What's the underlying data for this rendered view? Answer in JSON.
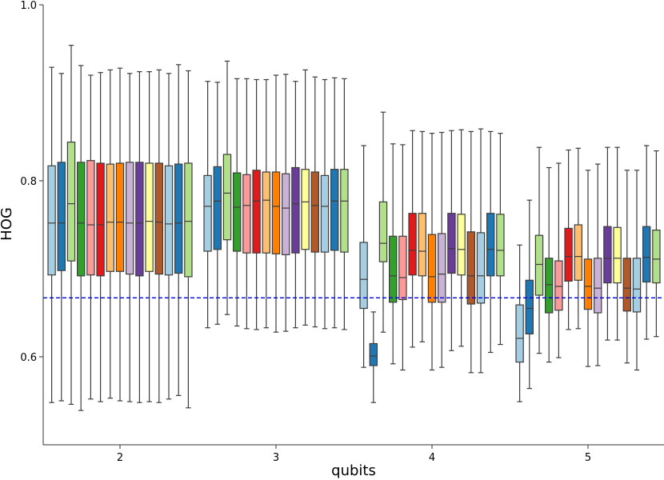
{
  "chart_data": {
    "type": "box",
    "xlabel": "qubits",
    "ylabel": "HOG",
    "ylim": [
      0.5,
      1.0
    ],
    "yticks": [
      "0.6",
      "0.8",
      "1.0"
    ],
    "categories": [
      "2",
      "3",
      "4",
      "5"
    ],
    "reference_line": {
      "y": 0.667,
      "style": "dashed",
      "color": "#0000cc"
    },
    "palette": [
      "#a6cee3",
      "#1f78b4",
      "#b2df8a",
      "#33a02c",
      "#fb9a99",
      "#e31a1c",
      "#fdbf6f",
      "#ff7f00",
      "#cab2d6",
      "#6a3d9a",
      "#ffff99",
      "#b15928"
    ],
    "groups": [
      {
        "category": "2",
        "boxes": [
          {
            "whislo": 0.548,
            "q1": 0.693,
            "med": 0.752,
            "q3": 0.817,
            "whishi": 0.929,
            "color": "#a6cee3"
          },
          {
            "whislo": 0.55,
            "q1": 0.698,
            "med": 0.752,
            "q3": 0.821,
            "whishi": 0.922,
            "color": "#1f78b4"
          },
          {
            "whislo": 0.546,
            "q1": 0.709,
            "med": 0.774,
            "q3": 0.844,
            "whishi": 0.954,
            "color": "#b2df8a"
          },
          {
            "whislo": 0.539,
            "q1": 0.692,
            "med": 0.752,
            "q3": 0.821,
            "whishi": 0.931,
            "color": "#33a02c"
          },
          {
            "whislo": 0.552,
            "q1": 0.693,
            "med": 0.75,
            "q3": 0.823,
            "whishi": 0.92,
            "color": "#fb9a99"
          },
          {
            "whislo": 0.549,
            "q1": 0.692,
            "med": 0.75,
            "q3": 0.82,
            "whishi": 0.923,
            "color": "#e31a1c"
          },
          {
            "whislo": 0.553,
            "q1": 0.697,
            "med": 0.753,
            "q3": 0.819,
            "whishi": 0.926,
            "color": "#fdbf6f"
          },
          {
            "whislo": 0.55,
            "q1": 0.697,
            "med": 0.753,
            "q3": 0.82,
            "whishi": 0.928,
            "color": "#ff7f00"
          },
          {
            "whislo": 0.549,
            "q1": 0.694,
            "med": 0.752,
            "q3": 0.821,
            "whishi": 0.922,
            "color": "#cab2d6"
          },
          {
            "whislo": 0.548,
            "q1": 0.692,
            "med": 0.752,
            "q3": 0.821,
            "whishi": 0.924,
            "color": "#6a3d9a"
          },
          {
            "whislo": 0.549,
            "q1": 0.697,
            "med": 0.754,
            "q3": 0.82,
            "whishi": 0.924,
            "color": "#ffff99"
          },
          {
            "whislo": 0.548,
            "q1": 0.694,
            "med": 0.753,
            "q3": 0.82,
            "whishi": 0.926,
            "color": "#b15928"
          },
          {
            "whislo": 0.552,
            "q1": 0.693,
            "med": 0.751,
            "q3": 0.817,
            "whishi": 0.922,
            "color": "#a6cee3"
          },
          {
            "whislo": 0.556,
            "q1": 0.695,
            "med": 0.752,
            "q3": 0.819,
            "whishi": 0.932,
            "color": "#1f78b4"
          },
          {
            "whislo": 0.542,
            "q1": 0.691,
            "med": 0.754,
            "q3": 0.82,
            "whishi": 0.925,
            "color": "#b2df8a"
          }
        ]
      },
      {
        "category": "3",
        "boxes": [
          {
            "whislo": 0.633,
            "q1": 0.72,
            "med": 0.771,
            "q3": 0.806,
            "whishi": 0.913,
            "color": "#a6cee3"
          },
          {
            "whislo": 0.637,
            "q1": 0.722,
            "med": 0.777,
            "q3": 0.816,
            "whishi": 0.912,
            "color": "#1f78b4"
          },
          {
            "whislo": 0.648,
            "q1": 0.733,
            "med": 0.786,
            "q3": 0.83,
            "whishi": 0.936,
            "color": "#b2df8a"
          },
          {
            "whislo": 0.635,
            "q1": 0.72,
            "med": 0.77,
            "q3": 0.809,
            "whishi": 0.916,
            "color": "#33a02c"
          },
          {
            "whislo": 0.632,
            "q1": 0.718,
            "med": 0.772,
            "q3": 0.807,
            "whishi": 0.916,
            "color": "#fb9a99"
          },
          {
            "whislo": 0.631,
            "q1": 0.718,
            "med": 0.777,
            "q3": 0.812,
            "whishi": 0.915,
            "color": "#e31a1c"
          },
          {
            "whislo": 0.633,
            "q1": 0.718,
            "med": 0.778,
            "q3": 0.81,
            "whishi": 0.915,
            "color": "#fdbf6f"
          },
          {
            "whislo": 0.628,
            "q1": 0.717,
            "med": 0.771,
            "q3": 0.81,
            "whishi": 0.92,
            "color": "#ff7f00"
          },
          {
            "whislo": 0.629,
            "q1": 0.716,
            "med": 0.769,
            "q3": 0.808,
            "whishi": 0.921,
            "color": "#cab2d6"
          },
          {
            "whislo": 0.633,
            "q1": 0.718,
            "med": 0.774,
            "q3": 0.815,
            "whishi": 0.913,
            "color": "#6a3d9a"
          },
          {
            "whislo": 0.636,
            "q1": 0.722,
            "med": 0.776,
            "q3": 0.813,
            "whishi": 0.926,
            "color": "#ffff99"
          },
          {
            "whislo": 0.634,
            "q1": 0.719,
            "med": 0.772,
            "q3": 0.81,
            "whishi": 0.918,
            "color": "#b15928"
          },
          {
            "whislo": 0.632,
            "q1": 0.719,
            "med": 0.771,
            "q3": 0.806,
            "whishi": 0.915,
            "color": "#a6cee3"
          },
          {
            "whislo": 0.633,
            "q1": 0.721,
            "med": 0.777,
            "q3": 0.813,
            "whishi": 0.917,
            "color": "#1f78b4"
          },
          {
            "whislo": 0.631,
            "q1": 0.719,
            "med": 0.777,
            "q3": 0.813,
            "whishi": 0.916,
            "color": "#b2df8a"
          }
        ]
      },
      {
        "category": "4",
        "boxes": [
          {
            "whislo": 0.588,
            "q1": 0.655,
            "med": 0.688,
            "q3": 0.73,
            "whishi": 0.84,
            "color": "#a6cee3"
          },
          {
            "whislo": 0.548,
            "q1": 0.59,
            "med": 0.601,
            "q3": 0.615,
            "whishi": 0.651,
            "color": "#1f78b4"
          },
          {
            "whislo": 0.628,
            "q1": 0.708,
            "med": 0.729,
            "q3": 0.776,
            "whishi": 0.878,
            "color": "#b2df8a"
          },
          {
            "whislo": 0.592,
            "q1": 0.662,
            "med": 0.692,
            "q3": 0.737,
            "whishi": 0.842,
            "color": "#33a02c"
          },
          {
            "whislo": 0.585,
            "q1": 0.665,
            "med": 0.69,
            "q3": 0.737,
            "whishi": 0.841,
            "color": "#fb9a99"
          },
          {
            "whislo": 0.611,
            "q1": 0.693,
            "med": 0.721,
            "q3": 0.763,
            "whishi": 0.857,
            "color": "#e31a1c"
          },
          {
            "whislo": 0.617,
            "q1": 0.692,
            "med": 0.72,
            "q3": 0.763,
            "whishi": 0.856,
            "color": "#fdbf6f"
          },
          {
            "whislo": 0.585,
            "q1": 0.662,
            "med": 0.691,
            "q3": 0.739,
            "whishi": 0.854,
            "color": "#ff7f00"
          },
          {
            "whislo": 0.588,
            "q1": 0.662,
            "med": 0.694,
            "q3": 0.74,
            "whishi": 0.855,
            "color": "#cab2d6"
          },
          {
            "whislo": 0.607,
            "q1": 0.695,
            "med": 0.723,
            "q3": 0.763,
            "whishi": 0.857,
            "color": "#6a3d9a"
          },
          {
            "whislo": 0.612,
            "q1": 0.693,
            "med": 0.722,
            "q3": 0.762,
            "whishi": 0.858,
            "color": "#ffff99"
          },
          {
            "whislo": 0.582,
            "q1": 0.66,
            "med": 0.692,
            "q3": 0.742,
            "whishi": 0.856,
            "color": "#b15928"
          },
          {
            "whislo": 0.582,
            "q1": 0.661,
            "med": 0.692,
            "q3": 0.741,
            "whishi": 0.859,
            "color": "#a6cee3"
          },
          {
            "whislo": 0.605,
            "q1": 0.692,
            "med": 0.722,
            "q3": 0.763,
            "whishi": 0.856,
            "color": "#1f78b4"
          },
          {
            "whislo": 0.614,
            "q1": 0.692,
            "med": 0.721,
            "q3": 0.762,
            "whishi": 0.854,
            "color": "#b2df8a"
          }
        ]
      },
      {
        "category": "5",
        "boxes": [
          {
            "whislo": 0.549,
            "q1": 0.594,
            "med": 0.621,
            "q3": 0.659,
            "whishi": 0.727,
            "color": "#a6cee3"
          },
          {
            "whislo": 0.564,
            "q1": 0.626,
            "med": 0.655,
            "q3": 0.687,
            "whishi": 0.778,
            "color": "#1f78b4"
          },
          {
            "whislo": 0.604,
            "q1": 0.67,
            "med": 0.705,
            "q3": 0.738,
            "whishi": 0.838,
            "color": "#b2df8a"
          },
          {
            "whislo": 0.594,
            "q1": 0.65,
            "med": 0.682,
            "q3": 0.712,
            "whishi": 0.815,
            "color": "#33a02c"
          },
          {
            "whislo": 0.599,
            "q1": 0.653,
            "med": 0.68,
            "q3": 0.709,
            "whishi": 0.82,
            "color": "#fb9a99"
          },
          {
            "whislo": 0.631,
            "q1": 0.686,
            "med": 0.714,
            "q3": 0.746,
            "whishi": 0.835,
            "color": "#e31a1c"
          },
          {
            "whislo": 0.632,
            "q1": 0.687,
            "med": 0.714,
            "q3": 0.75,
            "whishi": 0.837,
            "color": "#fdbf6f"
          },
          {
            "whislo": 0.589,
            "q1": 0.654,
            "med": 0.68,
            "q3": 0.711,
            "whishi": 0.812,
            "color": "#ff7f00"
          },
          {
            "whislo": 0.59,
            "q1": 0.65,
            "med": 0.678,
            "q3": 0.712,
            "whishi": 0.819,
            "color": "#cab2d6"
          },
          {
            "whislo": 0.619,
            "q1": 0.684,
            "med": 0.712,
            "q3": 0.748,
            "whishi": 0.838,
            "color": "#6a3d9a"
          },
          {
            "whislo": 0.619,
            "q1": 0.684,
            "med": 0.712,
            "q3": 0.747,
            "whishi": 0.838,
            "color": "#ffff99"
          },
          {
            "whislo": 0.593,
            "q1": 0.652,
            "med": 0.678,
            "q3": 0.712,
            "whishi": 0.812,
            "color": "#b15928"
          },
          {
            "whislo": 0.585,
            "q1": 0.651,
            "med": 0.677,
            "q3": 0.712,
            "whishi": 0.812,
            "color": "#a6cee3"
          },
          {
            "whislo": 0.62,
            "q1": 0.685,
            "med": 0.713,
            "q3": 0.748,
            "whishi": 0.84,
            "color": "#1f78b4"
          },
          {
            "whislo": 0.623,
            "q1": 0.684,
            "med": 0.711,
            "q3": 0.744,
            "whishi": 0.834,
            "color": "#b2df8a"
          }
        ]
      }
    ]
  }
}
